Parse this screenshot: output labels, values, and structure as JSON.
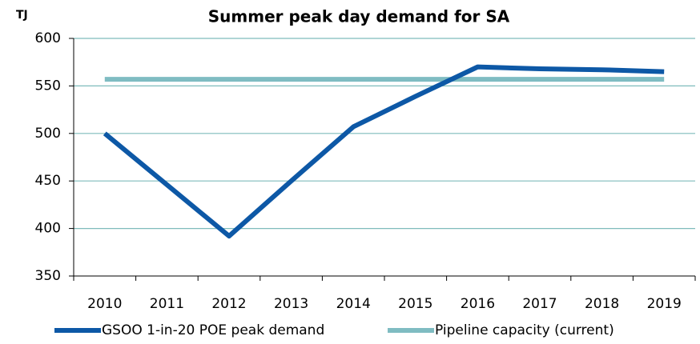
{
  "chart_data": {
    "type": "line",
    "title": "Summer peak day demand for SA",
    "y_label": "TJ",
    "categories": [
      "2010",
      "2011",
      "2012",
      "2013",
      "2014",
      "2015",
      "2016",
      "2017",
      "2018",
      "2019"
    ],
    "series": [
      {
        "name": "GSOO 1-in-20 POE peak demand",
        "color": "#0d58a6",
        "values": [
          500,
          446,
          392,
          450,
          507,
          539,
          570,
          568,
          567,
          565
        ]
      },
      {
        "name": "Pipeline capacity (current)",
        "color": "#7fbcc2",
        "values": [
          557,
          557,
          557,
          557,
          557,
          557,
          557,
          557,
          557,
          557
        ]
      }
    ],
    "ylim": [
      350,
      600
    ],
    "yticks": [
      350,
      400,
      450,
      500,
      550,
      600
    ],
    "grid": true,
    "legend": "bottom"
  }
}
